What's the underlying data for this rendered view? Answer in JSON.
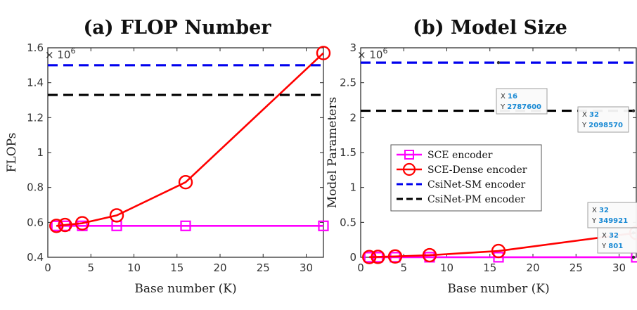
{
  "chart_data": [
    {
      "type": "line",
      "title": "(a) FLOP Number",
      "xlabel": "Base number (K)",
      "ylabel": "FLOPs",
      "exponent_label": "× 10",
      "exponent_power": "6",
      "xlim": [
        0,
        32
      ],
      "ylim": [
        0.4,
        1.6
      ],
      "xticks": [
        0,
        5,
        10,
        15,
        20,
        25,
        30
      ],
      "yticks": [
        0.4,
        0.6,
        0.8,
        1.0,
        1.2,
        1.4,
        1.6
      ],
      "ytick_labels": [
        "0.4",
        "0.6",
        "0.8",
        "1",
        "1.2",
        "1.4",
        "1.6"
      ],
      "x": [
        1,
        2,
        4,
        8,
        16,
        32
      ],
      "series": [
        {
          "name": "SCE encoder",
          "color": "#ff00ff",
          "marker": "square",
          "values": [
            0.58,
            0.58,
            0.58,
            0.58,
            0.58,
            0.58
          ]
        },
        {
          "name": "SCE-Dense encoder",
          "color": "#ff0000",
          "marker": "circle",
          "values": [
            0.58,
            0.585,
            0.595,
            0.64,
            0.83,
            1.57
          ]
        },
        {
          "name": "CsiNet-SM encoder",
          "color": "#0000ee",
          "style": "dashed",
          "hline": 1.5
        },
        {
          "name": "CsiNet-PM encoder",
          "color": "#000000",
          "style": "dashed",
          "hline": 1.33
        }
      ]
    },
    {
      "type": "line",
      "title": "(b) Model Size",
      "xlabel": "Base number (K)",
      "ylabel": "Model Parameters",
      "exponent_label": "× 10",
      "exponent_power": "6",
      "xlim": [
        0,
        32
      ],
      "ylim": [
        0,
        3
      ],
      "xticks": [
        0,
        5,
        10,
        15,
        20,
        25,
        30
      ],
      "yticks": [
        0,
        0.5,
        1,
        1.5,
        2,
        2.5,
        3
      ],
      "ytick_labels": [
        "0",
        "0.5",
        "1",
        "1.5",
        "2",
        "2.5",
        "3"
      ],
      "x": [
        1,
        2,
        4,
        8,
        16,
        32
      ],
      "series": [
        {
          "name": "SCE encoder",
          "color": "#ff00ff",
          "marker": "square",
          "values": [
            0.001,
            0.001,
            0.001,
            0.001,
            0.001,
            0.000801
          ]
        },
        {
          "name": "SCE-Dense encoder",
          "color": "#ff0000",
          "marker": "circle",
          "values": [
            0.003,
            0.006,
            0.012,
            0.03,
            0.09,
            0.349921
          ]
        },
        {
          "name": "CsiNet-SM encoder",
          "color": "#0000ee",
          "style": "dashed",
          "hline": 2.7876
        },
        {
          "name": "CsiNet-PM encoder",
          "color": "#000000",
          "style": "dashed",
          "hline": 2.09857
        }
      ],
      "legend": {
        "placement": "center-left",
        "entries": [
          "SCE encoder",
          "SCE-Dense encoder",
          "CsiNet-SM encoder",
          "CsiNet-PM encoder"
        ]
      },
      "datatips": [
        {
          "x": "16",
          "y": "2787600",
          "at_x": 16,
          "at_y": 2.7876
        },
        {
          "x": "32",
          "y": "2098570",
          "at_x": 32,
          "at_y": 2.09857
        },
        {
          "x": "32",
          "y": "349921",
          "at_x": 32,
          "at_y": 0.349921
        },
        {
          "x": "32",
          "y": "801",
          "at_x": 32,
          "at_y": 0.000801
        }
      ]
    }
  ]
}
